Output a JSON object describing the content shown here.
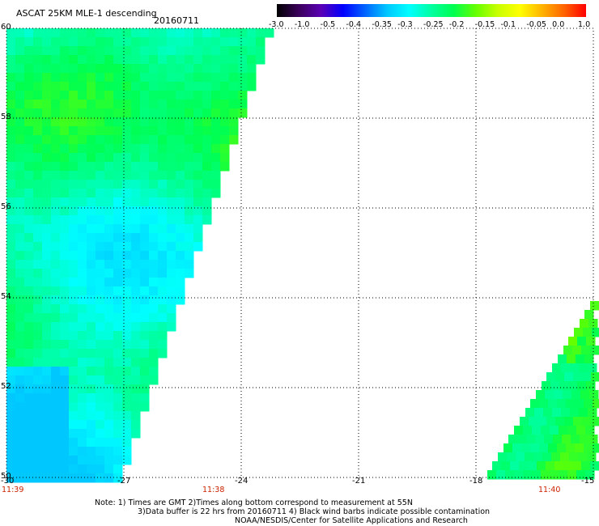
{
  "header": {
    "title": "ASCAT 25KM MLE-1 descending",
    "date": "20160711"
  },
  "colorbar": {
    "labels": [
      "-3.0",
      "-1.0",
      "-0.5",
      "-0.4",
      "-0.35",
      "-0.3",
      "-0.25",
      "-0.2",
      "-0.15",
      "-0.1",
      "-0.05",
      "0.0",
      "1.0"
    ],
    "colors": [
      "#000000",
      "#3a005a",
      "#5a00b4",
      "#0000ff",
      "#0064ff",
      "#00c8ff",
      "#00ffff",
      "#00ffa0",
      "#00ff50",
      "#64ff00",
      "#c8ff00",
      "#ffff00",
      "#ffb400",
      "#ff6400",
      "#ff0000"
    ]
  },
  "map": {
    "lat_labels": [
      "60",
      "58",
      "56",
      "54",
      "52",
      "50"
    ],
    "lon_labels": [
      "-30",
      "-27",
      "-24",
      "-21",
      "-18",
      "-15"
    ],
    "time_labels": [
      "11:39",
      "11:38",
      "11:40"
    ],
    "lat_range": [
      50,
      60
    ],
    "lon_range": [
      -30,
      -15
    ],
    "grid": true
  },
  "notes": {
    "line1": "Note: 1) Times are GMT 2)Times along bottom correspond to measurement at 55N",
    "line2": "3)Data buffer is 22 hrs from 20160711 4) Black wind barbs indicate possible contamination",
    "line3": "NOAA/NESDIS/Center for Satellite Applications and Research"
  }
}
